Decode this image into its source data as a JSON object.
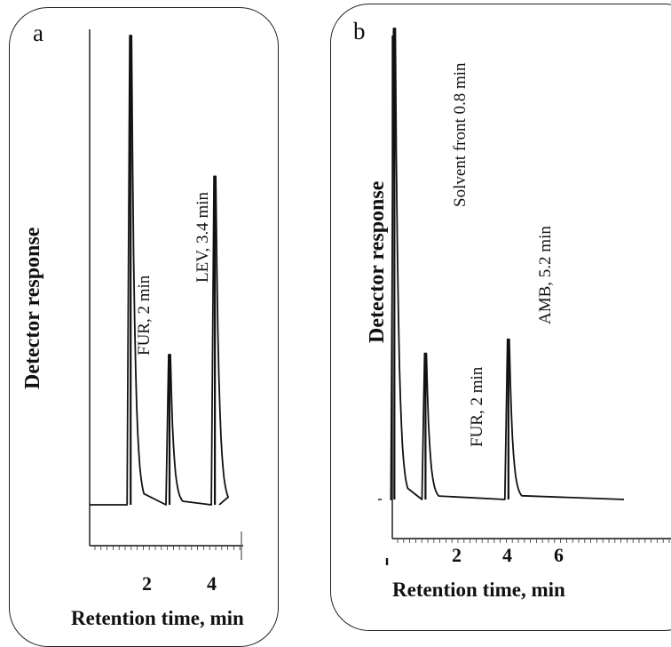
{
  "chart_data": [
    {
      "panel": "a",
      "type": "line",
      "xlabel": "Retention time, min",
      "ylabel": "Detector response",
      "x_tick_labels": [
        "2",
        "4"
      ],
      "peaks": [
        {
          "label": "",
          "retention_min": 0.8,
          "relative_height": 1.0
        },
        {
          "label": "FUR, 2 min",
          "retention_min": 2.0,
          "relative_height": 0.32
        },
        {
          "label": "LEV, 3.4 min",
          "retention_min": 3.4,
          "relative_height": 0.7
        }
      ]
    },
    {
      "panel": "b",
      "type": "line",
      "xlabel": "Retention time, min",
      "ylabel": "Detector response",
      "x_tick_labels": [
        "2",
        "4",
        "6"
      ],
      "peaks": [
        {
          "label": "Solvent front 0.8 min",
          "retention_min": 0.8,
          "relative_height": 1.0
        },
        {
          "label": "FUR, 2 min",
          "retention_min": 2.0,
          "relative_height": 0.31
        },
        {
          "label": "AMB, 5.2 min",
          "retention_min": 5.2,
          "relative_height": 0.34
        }
      ]
    }
  ]
}
